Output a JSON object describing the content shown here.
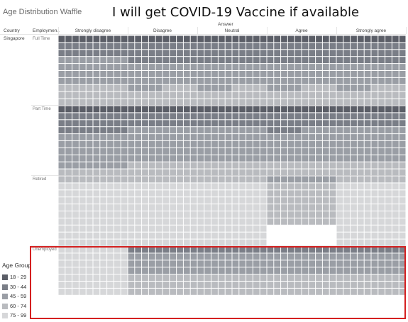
{
  "sheet_title": "Age Distribution Waffle",
  "title": "I will get COVID-19 Vaccine if available",
  "headers": {
    "country": "Country",
    "employment": "Employmen..",
    "answer": "Answer"
  },
  "country": "Singapore",
  "legend": {
    "title": "Age Group",
    "items": [
      {
        "label": "18 - 29",
        "color": "#5b5e67"
      },
      {
        "label": "30 - 44",
        "color": "#7a7e87"
      },
      {
        "label": "45 - 59",
        "color": "#9a9ea5"
      },
      {
        "label": "60 - 74",
        "color": "#b9bbbf"
      },
      {
        "label": "75 - 99",
        "color": "#d6d7d9"
      }
    ]
  },
  "highlight_color": "#d42020",
  "chart_data": {
    "type": "heatmap",
    "title": "I will get COVID-19 Vaccine if available",
    "x_label": "Answer",
    "columns": [
      "Strongly disagree",
      "Disagree",
      "Neutral",
      "Agree",
      "Strongly agree"
    ],
    "rows": [
      "Full Time",
      "Part Time",
      "Retired",
      "Unemployed"
    ],
    "grid_per_cell": {
      "cols": 10,
      "rows": 10
    },
    "series_order": [
      "18 - 29",
      "30 - 44",
      "45 - 59",
      "60 - 74",
      "75 - 99"
    ],
    "cells": [
      [
        [
          10,
          20,
          40,
          30,
          0
        ],
        [
          10,
          30,
          35,
          25,
          0
        ],
        [
          10,
          30,
          35,
          25,
          0
        ],
        [
          10,
          30,
          35,
          25,
          0
        ],
        [
          10,
          30,
          35,
          25,
          0
        ]
      ],
      [
        [
          10,
          30,
          50,
          10,
          0
        ],
        [
          10,
          20,
          50,
          20,
          0
        ],
        [
          10,
          20,
          50,
          20,
          0
        ],
        [
          10,
          25,
          45,
          20,
          0
        ],
        [
          10,
          20,
          50,
          20,
          0
        ]
      ],
      [
        [
          0,
          0,
          0,
          10,
          90
        ],
        [
          0,
          0,
          0,
          10,
          90
        ],
        [
          0,
          0,
          0,
          10,
          90
        ],
        [
          0,
          0,
          10,
          60,
          0
        ],
        [
          0,
          0,
          0,
          10,
          90
        ]
      ],
      [
        [
          0,
          0,
          0,
          0,
          70
        ],
        [
          0,
          10,
          30,
          30,
          0
        ],
        [
          0,
          10,
          30,
          30,
          0
        ],
        [
          0,
          10,
          30,
          30,
          0
        ],
        [
          0,
          10,
          30,
          30,
          0
        ]
      ]
    ]
  }
}
